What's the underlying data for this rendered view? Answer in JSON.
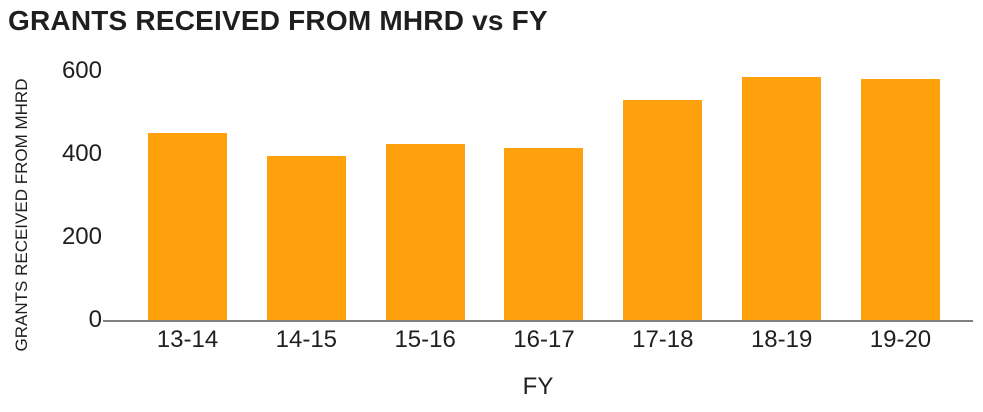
{
  "chart_data": {
    "type": "bar",
    "title": "GRANTS RECEIVED FROM MHRD vs FY",
    "xlabel": "FY",
    "ylabel": "GRANTS RECEIVED FROM MHRD",
    "categories": [
      "13-14",
      "14-15",
      "15-16",
      "16-17",
      "17-18",
      "18-19",
      "19-20"
    ],
    "values": [
      450,
      395,
      425,
      415,
      530,
      585,
      580
    ],
    "ylim": [
      0,
      600
    ],
    "yticks": [
      0,
      200,
      400,
      600
    ],
    "grid": "off",
    "legend": "none",
    "colors": {
      "bar": "#FFA00D",
      "axis_line": "#808080",
      "text": "#1F1F1F"
    }
  }
}
